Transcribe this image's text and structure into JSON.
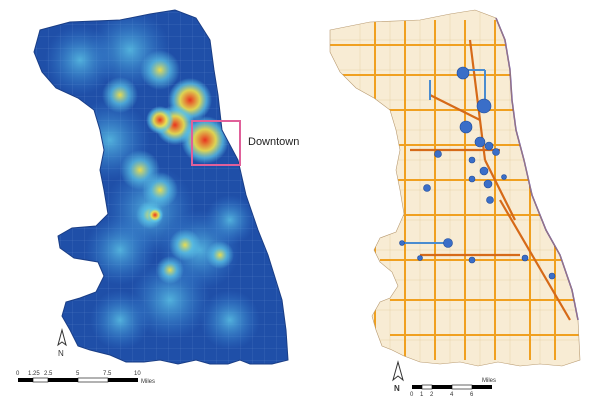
{
  "left_map": {
    "callout_label": "Downtown",
    "north_label": "N",
    "scale": {
      "ticks": [
        "0",
        "1.25",
        "2.5",
        "5",
        "7.5",
        "10"
      ],
      "unit": "Miles"
    },
    "colors": {
      "background": "#1f4fa8",
      "low": "#2a6fd0",
      "mid": "#5ec8e8",
      "high": "#f2e24a",
      "hot": "#e8331f",
      "callout": "#e0609a",
      "outline": "#1a3e86"
    }
  },
  "right_map": {
    "north_label": "N",
    "scale": {
      "ticks": [
        "0",
        "1",
        "2",
        "4",
        "6"
      ],
      "unit": "Miles"
    },
    "colors": {
      "land": "#f8ecd4",
      "major_route": "#f0a020",
      "hot_route": "#d66a18",
      "blue_route": "#4a8cd0",
      "stop": "#3a6ec8",
      "lake_shore": "#5a3a9a"
    }
  }
}
